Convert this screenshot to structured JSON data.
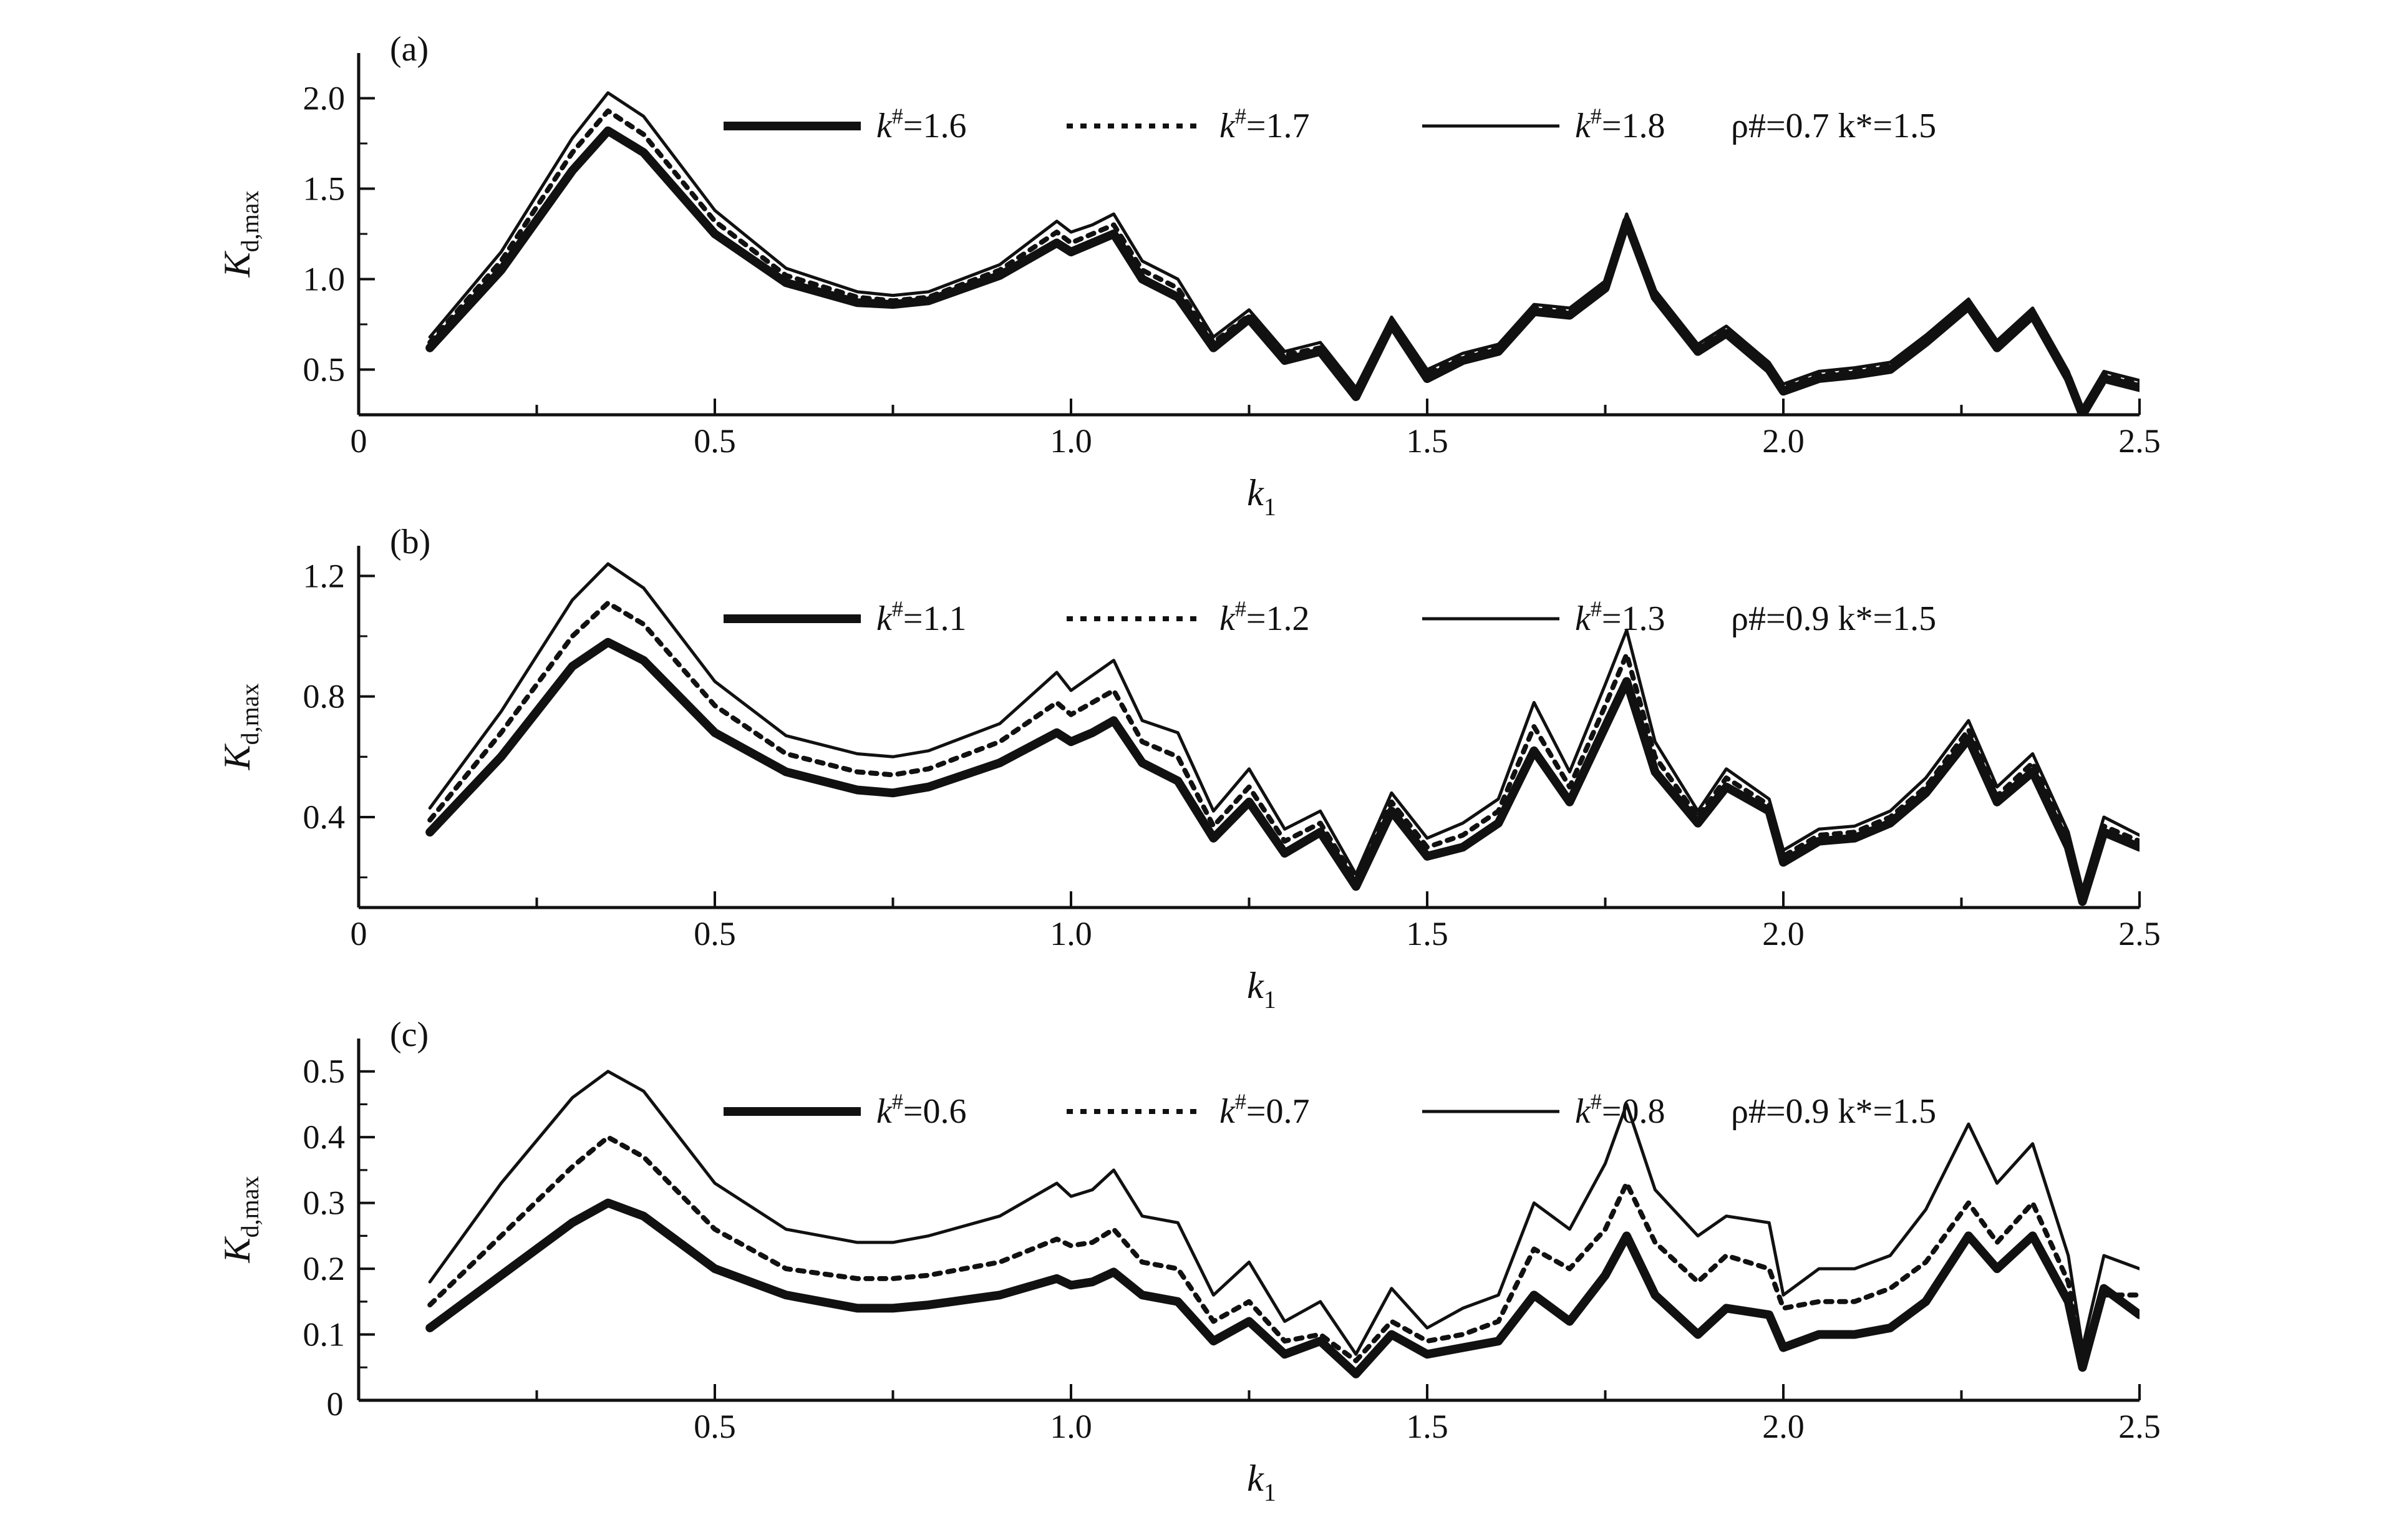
{
  "chart_data": [
    {
      "type": "line",
      "panel_label": "(a)",
      "xlabel": "k1",
      "ylabel": "Kd,max",
      "xlim": [
        0,
        2.5
      ],
      "ylim": [
        0.25,
        2.25
      ],
      "x_ticks": [
        "0",
        "0.5",
        "1.0",
        "1.5",
        "2.0",
        "2.5"
      ],
      "y_ticks": [
        "0.5",
        "1.0",
        "1.5",
        "2.0"
      ],
      "y_tick_values": [
        0.5,
        1.0,
        1.5,
        2.0
      ],
      "legend_note": "ρ#=0.7   k*=1.5",
      "series": [
        {
          "name": "k#=1.6",
          "style": "thick",
          "x": [
            0.1,
            0.2,
            0.3,
            0.35,
            0.4,
            0.5,
            0.6,
            0.7,
            0.75,
            0.8,
            0.9,
            0.98,
            1.0,
            1.03,
            1.06,
            1.1,
            1.15,
            1.2,
            1.25,
            1.3,
            1.35,
            1.4,
            1.45,
            1.5,
            1.55,
            1.6,
            1.65,
            1.7,
            1.75,
            1.78,
            1.82,
            1.88,
            1.92,
            1.98,
            2.0,
            2.05,
            2.1,
            2.15,
            2.2,
            2.26,
            2.3,
            2.35,
            2.4,
            2.42,
            2.45,
            2.5
          ],
          "values": [
            0.62,
            1.05,
            1.6,
            1.82,
            1.7,
            1.25,
            0.98,
            0.87,
            0.86,
            0.88,
            1.02,
            1.2,
            1.15,
            1.2,
            1.25,
            1.0,
            0.9,
            0.62,
            0.78,
            0.55,
            0.6,
            0.35,
            0.75,
            0.45,
            0.55,
            0.6,
            0.82,
            0.8,
            0.95,
            1.32,
            0.9,
            0.6,
            0.7,
            0.5,
            0.38,
            0.45,
            0.47,
            0.5,
            0.65,
            0.85,
            0.62,
            0.8,
            0.45,
            0.25,
            0.45,
            0.4
          ]
        },
        {
          "name": "k#=1.7",
          "style": "dotted",
          "x": [
            0.1,
            0.2,
            0.3,
            0.35,
            0.4,
            0.5,
            0.6,
            0.7,
            0.75,
            0.8,
            0.9,
            0.98,
            1.0,
            1.03,
            1.06,
            1.1,
            1.15,
            1.2,
            1.25,
            1.3,
            1.35,
            1.4,
            1.45,
            1.5,
            1.55,
            1.6,
            1.65,
            1.7,
            1.75,
            1.78,
            1.82,
            1.88,
            1.92,
            1.98,
            2.0,
            2.05,
            2.1,
            2.15,
            2.2,
            2.26,
            2.3,
            2.35,
            2.4,
            2.42,
            2.45,
            2.5
          ],
          "values": [
            0.65,
            1.1,
            1.7,
            1.93,
            1.8,
            1.32,
            1.02,
            0.9,
            0.88,
            0.9,
            1.05,
            1.26,
            1.2,
            1.25,
            1.3,
            1.05,
            0.95,
            0.65,
            0.8,
            0.58,
            0.62,
            0.38,
            0.77,
            0.48,
            0.57,
            0.62,
            0.84,
            0.82,
            0.97,
            1.34,
            0.92,
            0.62,
            0.72,
            0.52,
            0.4,
            0.47,
            0.49,
            0.52,
            0.67,
            0.87,
            0.64,
            0.82,
            0.47,
            0.27,
            0.47,
            0.42
          ]
        },
        {
          "name": "k#=1.8",
          "style": "thin",
          "x": [
            0.1,
            0.2,
            0.3,
            0.35,
            0.4,
            0.5,
            0.6,
            0.7,
            0.75,
            0.8,
            0.9,
            0.98,
            1.0,
            1.03,
            1.06,
            1.1,
            1.15,
            1.2,
            1.25,
            1.3,
            1.35,
            1.4,
            1.45,
            1.5,
            1.55,
            1.6,
            1.65,
            1.7,
            1.75,
            1.78,
            1.82,
            1.88,
            1.92,
            1.98,
            2.0,
            2.05,
            2.1,
            2.15,
            2.2,
            2.26,
            2.3,
            2.35,
            2.4,
            2.42,
            2.45,
            2.5
          ],
          "values": [
            0.68,
            1.15,
            1.78,
            2.03,
            1.9,
            1.38,
            1.06,
            0.93,
            0.91,
            0.93,
            1.08,
            1.32,
            1.26,
            1.3,
            1.36,
            1.1,
            1.0,
            0.68,
            0.83,
            0.6,
            0.65,
            0.4,
            0.79,
            0.5,
            0.59,
            0.64,
            0.86,
            0.84,
            0.99,
            1.36,
            0.94,
            0.64,
            0.74,
            0.54,
            0.42,
            0.49,
            0.51,
            0.54,
            0.69,
            0.89,
            0.66,
            0.84,
            0.49,
            0.29,
            0.49,
            0.44
          ]
        }
      ]
    },
    {
      "type": "line",
      "panel_label": "(b)",
      "xlabel": "k1",
      "ylabel": "Kd,max",
      "xlim": [
        0,
        2.5
      ],
      "ylim": [
        0.1,
        1.3
      ],
      "x_ticks": [
        "0",
        "0.5",
        "1.0",
        "1.5",
        "2.0",
        "2.5"
      ],
      "y_ticks": [
        "0.4",
        "0.8",
        "1.2"
      ],
      "y_tick_values": [
        0.4,
        0.8,
        1.2
      ],
      "legend_note": "ρ#=0.9   k*=1.5",
      "series": [
        {
          "name": "k#=1.1",
          "style": "thick",
          "x": [
            0.1,
            0.2,
            0.3,
            0.35,
            0.4,
            0.5,
            0.6,
            0.7,
            0.75,
            0.8,
            0.9,
            0.98,
            1.0,
            1.03,
            1.06,
            1.1,
            1.15,
            1.2,
            1.25,
            1.3,
            1.35,
            1.4,
            1.45,
            1.5,
            1.55,
            1.6,
            1.65,
            1.7,
            1.75,
            1.78,
            1.82,
            1.88,
            1.92,
            1.98,
            2.0,
            2.05,
            2.1,
            2.15,
            2.2,
            2.26,
            2.3,
            2.35,
            2.4,
            2.42,
            2.45,
            2.5
          ],
          "values": [
            0.35,
            0.6,
            0.9,
            0.98,
            0.92,
            0.68,
            0.55,
            0.49,
            0.48,
            0.5,
            0.58,
            0.68,
            0.65,
            0.68,
            0.72,
            0.58,
            0.52,
            0.33,
            0.45,
            0.28,
            0.35,
            0.17,
            0.42,
            0.27,
            0.3,
            0.38,
            0.62,
            0.45,
            0.7,
            0.85,
            0.55,
            0.38,
            0.5,
            0.42,
            0.25,
            0.32,
            0.33,
            0.38,
            0.48,
            0.66,
            0.45,
            0.55,
            0.3,
            0.12,
            0.35,
            0.3
          ]
        },
        {
          "name": "k#=1.2",
          "style": "dotted",
          "x": [
            0.1,
            0.2,
            0.3,
            0.35,
            0.4,
            0.5,
            0.6,
            0.7,
            0.75,
            0.8,
            0.9,
            0.98,
            1.0,
            1.03,
            1.06,
            1.1,
            1.15,
            1.2,
            1.25,
            1.3,
            1.35,
            1.4,
            1.45,
            1.5,
            1.55,
            1.6,
            1.65,
            1.7,
            1.75,
            1.78,
            1.82,
            1.88,
            1.92,
            1.98,
            2.0,
            2.05,
            2.1,
            2.15,
            2.2,
            2.26,
            2.3,
            2.35,
            2.4,
            2.42,
            2.45,
            2.5
          ],
          "values": [
            0.39,
            0.68,
            1.0,
            1.11,
            1.04,
            0.77,
            0.61,
            0.55,
            0.54,
            0.56,
            0.65,
            0.78,
            0.74,
            0.78,
            0.82,
            0.65,
            0.6,
            0.37,
            0.5,
            0.32,
            0.38,
            0.19,
            0.45,
            0.3,
            0.34,
            0.42,
            0.7,
            0.5,
            0.77,
            0.94,
            0.6,
            0.4,
            0.53,
            0.44,
            0.27,
            0.34,
            0.35,
            0.4,
            0.5,
            0.69,
            0.47,
            0.58,
            0.32,
            0.14,
            0.37,
            0.32
          ]
        },
        {
          "name": "k#=1.3",
          "style": "thin",
          "x": [
            0.1,
            0.2,
            0.3,
            0.35,
            0.4,
            0.5,
            0.6,
            0.7,
            0.75,
            0.8,
            0.9,
            0.98,
            1.0,
            1.03,
            1.06,
            1.1,
            1.15,
            1.2,
            1.25,
            1.3,
            1.35,
            1.4,
            1.45,
            1.5,
            1.55,
            1.6,
            1.65,
            1.7,
            1.75,
            1.78,
            1.82,
            1.88,
            1.92,
            1.98,
            2.0,
            2.05,
            2.1,
            2.15,
            2.2,
            2.26,
            2.3,
            2.35,
            2.4,
            2.42,
            2.45,
            2.5
          ],
          "values": [
            0.43,
            0.75,
            1.12,
            1.24,
            1.16,
            0.85,
            0.67,
            0.61,
            0.6,
            0.62,
            0.71,
            0.88,
            0.82,
            0.87,
            0.92,
            0.72,
            0.68,
            0.42,
            0.56,
            0.36,
            0.42,
            0.21,
            0.48,
            0.33,
            0.38,
            0.46,
            0.78,
            0.55,
            0.84,
            1.02,
            0.65,
            0.42,
            0.56,
            0.46,
            0.29,
            0.36,
            0.37,
            0.42,
            0.53,
            0.72,
            0.5,
            0.61,
            0.35,
            0.16,
            0.4,
            0.34
          ]
        }
      ]
    },
    {
      "type": "line",
      "panel_label": "(c)",
      "xlabel": "k1",
      "ylabel": "Kd,max",
      "xlim": [
        0,
        2.5
      ],
      "ylim": [
        0,
        0.55
      ],
      "x_ticks": [
        "0.5",
        "1.0",
        "1.5",
        "2.0",
        "2.5"
      ],
      "x_tick_values": [
        0.5,
        1.0,
        1.5,
        2.0,
        2.5
      ],
      "origin_label": "0",
      "y_ticks": [
        "0.1",
        "0.2",
        "0.3",
        "0.4",
        "0.5"
      ],
      "y_tick_values": [
        0.1,
        0.2,
        0.3,
        0.4,
        0.5
      ],
      "legend_note": "ρ#=0.9   k*=1.5",
      "series": [
        {
          "name": "k#=0.6",
          "style": "thick",
          "x": [
            0.1,
            0.2,
            0.3,
            0.35,
            0.4,
            0.5,
            0.6,
            0.7,
            0.75,
            0.8,
            0.9,
            0.98,
            1.0,
            1.03,
            1.06,
            1.1,
            1.15,
            1.2,
            1.25,
            1.3,
            1.35,
            1.4,
            1.45,
            1.5,
            1.55,
            1.6,
            1.65,
            1.7,
            1.75,
            1.78,
            1.82,
            1.88,
            1.92,
            1.98,
            2.0,
            2.05,
            2.1,
            2.15,
            2.2,
            2.26,
            2.3,
            2.35,
            2.4,
            2.42,
            2.45,
            2.5
          ],
          "values": [
            0.11,
            0.19,
            0.27,
            0.3,
            0.28,
            0.2,
            0.16,
            0.14,
            0.14,
            0.145,
            0.16,
            0.185,
            0.175,
            0.18,
            0.195,
            0.16,
            0.15,
            0.09,
            0.12,
            0.07,
            0.09,
            0.04,
            0.1,
            0.07,
            0.08,
            0.09,
            0.16,
            0.12,
            0.19,
            0.25,
            0.16,
            0.1,
            0.14,
            0.13,
            0.08,
            0.1,
            0.1,
            0.11,
            0.15,
            0.25,
            0.2,
            0.25,
            0.15,
            0.05,
            0.17,
            0.13
          ]
        },
        {
          "name": "k#=0.7",
          "style": "dotted",
          "x": [
            0.1,
            0.2,
            0.3,
            0.35,
            0.4,
            0.5,
            0.6,
            0.7,
            0.75,
            0.8,
            0.9,
            0.98,
            1.0,
            1.03,
            1.06,
            1.1,
            1.15,
            1.2,
            1.25,
            1.3,
            1.35,
            1.4,
            1.45,
            1.5,
            1.55,
            1.6,
            1.65,
            1.7,
            1.75,
            1.78,
            1.82,
            1.88,
            1.92,
            1.98,
            2.0,
            2.05,
            2.1,
            2.15,
            2.2,
            2.26,
            2.3,
            2.35,
            2.4,
            2.42,
            2.45,
            2.5
          ],
          "values": [
            0.145,
            0.25,
            0.355,
            0.4,
            0.37,
            0.26,
            0.2,
            0.185,
            0.185,
            0.19,
            0.21,
            0.245,
            0.235,
            0.24,
            0.26,
            0.21,
            0.2,
            0.12,
            0.15,
            0.09,
            0.1,
            0.06,
            0.12,
            0.09,
            0.1,
            0.12,
            0.23,
            0.2,
            0.26,
            0.33,
            0.24,
            0.18,
            0.22,
            0.2,
            0.14,
            0.15,
            0.15,
            0.17,
            0.21,
            0.3,
            0.24,
            0.3,
            0.18,
            0.07,
            0.16,
            0.16
          ]
        },
        {
          "name": "k#=0.8",
          "style": "thin",
          "x": [
            0.1,
            0.2,
            0.3,
            0.35,
            0.4,
            0.5,
            0.6,
            0.7,
            0.75,
            0.8,
            0.9,
            0.98,
            1.0,
            1.03,
            1.06,
            1.1,
            1.15,
            1.2,
            1.25,
            1.3,
            1.35,
            1.4,
            1.45,
            1.5,
            1.55,
            1.6,
            1.65,
            1.7,
            1.75,
            1.78,
            1.82,
            1.88,
            1.92,
            1.98,
            2.0,
            2.05,
            2.1,
            2.15,
            2.2,
            2.26,
            2.3,
            2.35,
            2.4,
            2.42,
            2.45,
            2.5
          ],
          "values": [
            0.18,
            0.33,
            0.46,
            0.5,
            0.47,
            0.33,
            0.26,
            0.24,
            0.24,
            0.25,
            0.28,
            0.33,
            0.31,
            0.32,
            0.35,
            0.28,
            0.27,
            0.16,
            0.21,
            0.12,
            0.15,
            0.07,
            0.17,
            0.11,
            0.14,
            0.16,
            0.3,
            0.26,
            0.36,
            0.45,
            0.32,
            0.25,
            0.28,
            0.27,
            0.16,
            0.2,
            0.2,
            0.22,
            0.29,
            0.42,
            0.33,
            0.39,
            0.22,
            0.08,
            0.22,
            0.2
          ]
        }
      ]
    }
  ]
}
